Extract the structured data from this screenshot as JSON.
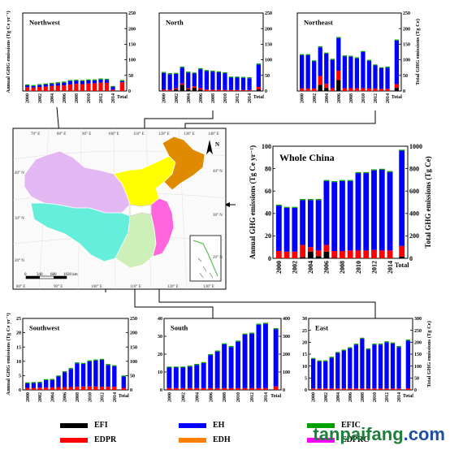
{
  "legend": {
    "items": [
      {
        "label": "EFI",
        "color": "#000000"
      },
      {
        "label": "EDPR",
        "color": "#ff0000"
      },
      {
        "label": "EH",
        "color": "#0000ff"
      },
      {
        "label": "EDH",
        "color": "#ff8000"
      },
      {
        "label": "EFIC",
        "color": "#00a000"
      },
      {
        "label": "EDPRC",
        "color": "#ff00ff"
      }
    ]
  },
  "watermark": {
    "prefix": "tanpaifang",
    "suffix": ".com"
  },
  "map": {
    "lon_labels": [
      "70° E",
      "80° E",
      "90° E",
      "100° E",
      "110° E",
      "120° E",
      "130° E",
      "140° E"
    ],
    "lon_labels_bottom": [
      "80° E",
      "90° E",
      "100° E",
      "110° E",
      "120° E",
      "130° E"
    ],
    "lat_labels_left": [
      "40° N",
      "30° N",
      "20° N"
    ],
    "lat_labels_right": [
      "40° N",
      "30° N",
      "20° N"
    ],
    "north_label": "N",
    "scale_ticks": [
      "0",
      "340",
      "680",
      "1020 km"
    ]
  },
  "chart_data": [
    {
      "type": "bar",
      "region": "Northwest",
      "title": "Northwest",
      "ylabel": "Annual GHG emissions (Tg Ce yr⁻¹)",
      "ylabel_right": "",
      "ylim": [
        0,
        25
      ],
      "ylim_right": [
        0,
        250
      ],
      "left_ticks": [],
      "right_ticks": [
        0,
        50,
        100,
        150,
        200,
        250
      ],
      "categories": [
        "2000",
        "2001",
        "2002",
        "2003",
        "2004",
        "2005",
        "2006",
        "2007",
        "2008",
        "2009",
        "2010",
        "2011",
        "2012",
        "2013",
        "2014"
      ],
      "xtick_labels": [
        "2000",
        "2002",
        "2004",
        "2006",
        "2008",
        "2010",
        "2012",
        "2014"
      ],
      "total_label": "Total",
      "total": 32,
      "series": [
        {
          "key": "EFI",
          "values": [
            0,
            0,
            0,
            0,
            0,
            0,
            0,
            0,
            0,
            0,
            0,
            0,
            0,
            0,
            0
          ]
        },
        {
          "key": "EDPR",
          "values": [
            1.2,
            1.1,
            1.3,
            1.4,
            1.6,
            1.7,
            1.8,
            2.1,
            2.3,
            2.2,
            2.4,
            2.5,
            2.7,
            2.6,
            0.4
          ]
        },
        {
          "key": "EH",
          "values": [
            0.6,
            0.5,
            0.6,
            0.7,
            0.7,
            0.8,
            0.9,
            1.1,
            1.0,
            1.0,
            1.0,
            0.9,
            1.0,
            1.0,
            0.9
          ]
        }
      ],
      "total_stack": [
        0,
        28,
        4
      ]
    },
    {
      "type": "bar",
      "region": "North",
      "title": "North",
      "ylabel": "",
      "ylabel_right": "",
      "ylim": [
        0,
        25
      ],
      "ylim_right": [
        0,
        250
      ],
      "left_ticks": [],
      "right_ticks": [
        0,
        50,
        100,
        150,
        200,
        250
      ],
      "categories": [
        "2000",
        "2001",
        "2002",
        "2003",
        "2004",
        "2005",
        "2006",
        "2007",
        "2008",
        "2009",
        "2010",
        "2011",
        "2012",
        "2013",
        "2014"
      ],
      "xtick_labels": [
        "2000",
        "2002",
        "2004",
        "2006",
        "2008",
        "2010",
        "2012",
        "2014"
      ],
      "total_label": "Total",
      "total": 85,
      "series": [
        {
          "key": "EFI",
          "values": [
            0,
            0,
            0.5,
            2.0,
            0.5,
            1.0,
            0.4,
            0,
            0,
            0,
            0,
            0,
            0,
            0,
            0
          ]
        },
        {
          "key": "EDPR",
          "values": [
            0.4,
            0.4,
            0.4,
            0.4,
            0.4,
            0.5,
            0.5,
            0.5,
            0.4,
            0.4,
            0.3,
            0.3,
            0.3,
            0.3,
            0.3
          ]
        },
        {
          "key": "EH",
          "values": [
            5.4,
            5.0,
            4.6,
            5.1,
            5.0,
            4.1,
            6.1,
            5.9,
            5.8,
            5.6,
            5.4,
            4.0,
            4.0,
            3.9,
            3.8
          ]
        }
      ],
      "total_stack": [
        5,
        8,
        72
      ]
    },
    {
      "type": "bar",
      "region": "Northeast",
      "title": "Northeast",
      "ylabel": "",
      "ylabel_right": "Total GHG emissions (Tg Ce)",
      "ylim": [
        0,
        25
      ],
      "ylim_right": [
        0,
        250
      ],
      "left_ticks": [],
      "right_ticks": [
        0,
        50,
        100,
        150,
        200,
        250
      ],
      "categories": [
        "2000",
        "2001",
        "2002",
        "2003",
        "2004",
        "2005",
        "2006",
        "2007",
        "2008",
        "2009",
        "2010",
        "2011",
        "2012",
        "2013",
        "2014"
      ],
      "xtick_labels": [
        "2000",
        "2002",
        "2004",
        "2006",
        "2008",
        "2010",
        "2012",
        "2014"
      ],
      "total_label": "Total",
      "total": 162,
      "series": [
        {
          "key": "EFI",
          "values": [
            0,
            0,
            0,
            2.0,
            1.0,
            0,
            3.5,
            0,
            0,
            0,
            0,
            0,
            0,
            0,
            0
          ]
        },
        {
          "key": "EDPR",
          "values": [
            0.9,
            0.8,
            0.8,
            2.8,
            1.3,
            0.9,
            3.0,
            0.9,
            0.9,
            0.9,
            0.9,
            0.8,
            0.8,
            0.7,
            0.7
          ]
        },
        {
          "key": "EH",
          "values": [
            10.6,
            10.7,
            8.7,
            9.2,
            9.7,
            9.1,
            10.5,
            10.2,
            10.1,
            9.6,
            11.6,
            8.9,
            7.4,
            6.6,
            6.8
          ]
        }
      ],
      "total_stack": [
        10,
        12,
        140
      ]
    },
    {
      "type": "bar",
      "region": "Whole China",
      "title": "Whole China",
      "ylabel": "Annual GHG emissions (Tg Ce yr⁻¹)",
      "ylabel_right": "Total GHG emissions (Tg Ce)",
      "ylim": [
        0,
        100
      ],
      "ylim_right": [
        0,
        1000
      ],
      "left_ticks": [
        0,
        20,
        40,
        60,
        80,
        100
      ],
      "right_ticks": [
        0,
        200,
        400,
        600,
        800,
        1000
      ],
      "categories": [
        "2000",
        "2001",
        "2002",
        "2003",
        "2004",
        "2005",
        "2006",
        "2007",
        "2008",
        "2009",
        "2010",
        "2011",
        "2012",
        "2013",
        "2014"
      ],
      "xtick_labels": [
        "2000",
        "2002",
        "2004",
        "2006",
        "2008",
        "2010",
        "2012",
        "2014"
      ],
      "total_label": "Total",
      "total": 960,
      "series": [
        {
          "key": "EFI",
          "values": [
            0,
            0,
            0,
            1.0,
            6.0,
            2.0,
            6.0,
            0.5,
            0,
            0,
            0,
            0,
            0,
            0,
            0
          ]
        },
        {
          "key": "EDPR",
          "values": [
            6.5,
            6.0,
            6.0,
            11.0,
            4.0,
            5.0,
            6.0,
            6.0,
            6.5,
            7.0,
            7.0,
            7.0,
            7.5,
            7.0,
            7.0
          ]
        },
        {
          "key": "EH",
          "values": [
            40.5,
            39.0,
            39.0,
            40.0,
            42.0,
            45.0,
            57.0,
            61.5,
            62.5,
            62.0,
            69.0,
            69.0,
            71.0,
            72.0,
            70.0
          ]
        }
      ],
      "total_stack": [
        15,
        95,
        850
      ]
    },
    {
      "type": "bar",
      "region": "Southwest",
      "title": "Southwest",
      "ylabel": "Annual GHG emissions (Tg Ce yr⁻¹)",
      "ylabel_right": "",
      "ylim": [
        0,
        25
      ],
      "ylim_right": [
        0,
        250
      ],
      "left_ticks": [
        0,
        5,
        10,
        15,
        20,
        25
      ],
      "right_ticks": [
        0,
        50,
        100,
        150,
        200,
        250
      ],
      "categories": [
        "2000",
        "2001",
        "2002",
        "2003",
        "2004",
        "2005",
        "2006",
        "2007",
        "2008",
        "2009",
        "2010",
        "2011",
        "2012",
        "2013",
        "2014"
      ],
      "xtick_labels": [
        "2000",
        "2002",
        "2004",
        "2006",
        "2008",
        "2010",
        "2012",
        "2014"
      ],
      "total_label": "Total",
      "total": 47,
      "series": [
        {
          "key": "EFI",
          "values": [
            0,
            0,
            0,
            0,
            0,
            0,
            0,
            0,
            0,
            0,
            0,
            0,
            0,
            0,
            0
          ]
        },
        {
          "key": "EDPR",
          "values": [
            0.7,
            0.7,
            0.8,
            0.8,
            0.9,
            1.0,
            1.0,
            1.0,
            1.1,
            1.2,
            1.2,
            1.2,
            1.1,
            1.1,
            1.1
          ]
        },
        {
          "key": "EH",
          "values": [
            1.6,
            1.7,
            1.7,
            2.6,
            2.6,
            3.7,
            5.2,
            6.3,
            8.2,
            7.9,
            8.8,
            9.1,
            9.4,
            7.6,
            7.2
          ]
        }
      ],
      "total_stack": [
        0,
        7,
        40
      ]
    },
    {
      "type": "bar",
      "region": "South",
      "title": "South",
      "ylabel": "",
      "ylabel_right": "",
      "ylim": [
        0,
        40
      ],
      "ylim_right": [
        0,
        400
      ],
      "left_ticks": [
        0,
        10,
        20,
        30,
        40
      ],
      "right_ticks": [
        0,
        100,
        200,
        300,
        400
      ],
      "categories": [
        "2000",
        "2001",
        "2002",
        "2003",
        "2004",
        "2005",
        "2006",
        "2007",
        "2008",
        "2009",
        "2010",
        "2011",
        "2012",
        "2013",
        "2014"
      ],
      "xtick_labels": [
        "2000",
        "2002",
        "2004",
        "2006",
        "2008",
        "2010",
        "2012",
        "2014"
      ],
      "total_label": "Total",
      "total": 340,
      "series": [
        {
          "key": "EFI",
          "values": [
            0,
            0,
            0,
            0,
            0,
            0,
            0,
            0,
            0,
            0,
            0,
            0,
            0,
            0,
            0
          ]
        },
        {
          "key": "EDPR",
          "values": [
            1.0,
            1.0,
            1.0,
            1.0,
            1.0,
            1.0,
            1.0,
            1.0,
            1.0,
            1.0,
            1.0,
            1.0,
            1.0,
            1.0,
            1.0
          ]
        },
        {
          "key": "EH",
          "values": [
            11.5,
            11.5,
            11.5,
            12.0,
            13.0,
            14.0,
            18.5,
            20.5,
            24.5,
            23.0,
            26.0,
            30.0,
            30.5,
            35.5,
            36.0
          ]
        }
      ],
      "total_stack": [
        0,
        20,
        320
      ]
    },
    {
      "type": "bar",
      "region": "East",
      "title": "East",
      "ylabel": "",
      "ylabel_right": "Total GHG emissions (Tg Ce)",
      "ylim": [
        0,
        30
      ],
      "ylim_right": [
        0,
        300
      ],
      "left_ticks": [
        0,
        5,
        10,
        15,
        20,
        25,
        30
      ],
      "right_ticks": [
        0,
        50,
        100,
        150,
        200,
        250,
        300
      ],
      "categories": [
        "2000",
        "2001",
        "2002",
        "2003",
        "2004",
        "2005",
        "2006",
        "2007",
        "2008",
        "2009",
        "2010",
        "2011",
        "2012",
        "2013",
        "2014"
      ],
      "xtick_labels": [
        "2000",
        "2002",
        "2004",
        "2006",
        "2008",
        "2010",
        "2012",
        "2014"
      ],
      "total_label": "Total",
      "total": 207,
      "series": [
        {
          "key": "EFI",
          "values": [
            0,
            0,
            0,
            0,
            0,
            0,
            0,
            0,
            0,
            0,
            0,
            0,
            0,
            0,
            0
          ]
        },
        {
          "key": "EDPR",
          "values": [
            0.6,
            0.6,
            0.6,
            0.6,
            0.6,
            0.6,
            0.6,
            0.6,
            0.6,
            0.6,
            0.6,
            0.6,
            0.6,
            0.6,
            0.6
          ]
        },
        {
          "key": "EH",
          "values": [
            12.4,
            11.4,
            11.4,
            12.9,
            14.9,
            15.9,
            16.9,
            18.4,
            20.9,
            16.4,
            18.4,
            18.4,
            19.4,
            18.9,
            17.4
          ]
        }
      ],
      "total_stack": [
        0,
        7,
        200
      ]
    }
  ]
}
